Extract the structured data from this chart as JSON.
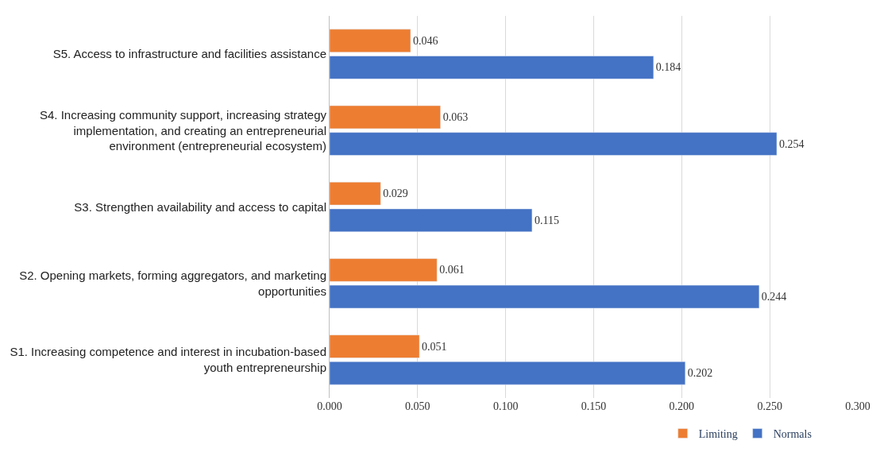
{
  "chart_data": {
    "type": "bar",
    "orientation": "horizontal",
    "categories": [
      "S5. Access to infrastructure and facilities assistance",
      "S4. Increasing community support, increasing strategy implementation, and creating an entrepreneurial environment (entrepreneurial ecosystem)",
      "S3. Strengthen availability and access to capital",
      "S2. Opening markets, forming aggregators, and marketing opportunities",
      "S1. Increasing competence and interest in incubation-based youth entrepreneurship"
    ],
    "series": [
      {
        "name": "Limiting",
        "color": "#ed7d31",
        "values": [
          0.046,
          0.063,
          0.029,
          0.061,
          0.051
        ]
      },
      {
        "name": "Normals",
        "color": "#4472c4",
        "values": [
          0.184,
          0.254,
          0.115,
          0.244,
          0.202
        ]
      }
    ],
    "xlim": [
      0,
      0.3
    ],
    "xticks": [
      {
        "value": 0,
        "label": "0.000"
      },
      {
        "value": 0.05,
        "label": "0.050"
      },
      {
        "value": 0.1,
        "label": "0.100"
      },
      {
        "value": 0.15,
        "label": "0.150"
      },
      {
        "value": 0.2,
        "label": "0.200"
      },
      {
        "value": 0.25,
        "label": "0.250"
      },
      {
        "value": 0.3,
        "label": "0.300"
      }
    ],
    "grid": "x",
    "legend": "bottom",
    "data_labels": true
  }
}
